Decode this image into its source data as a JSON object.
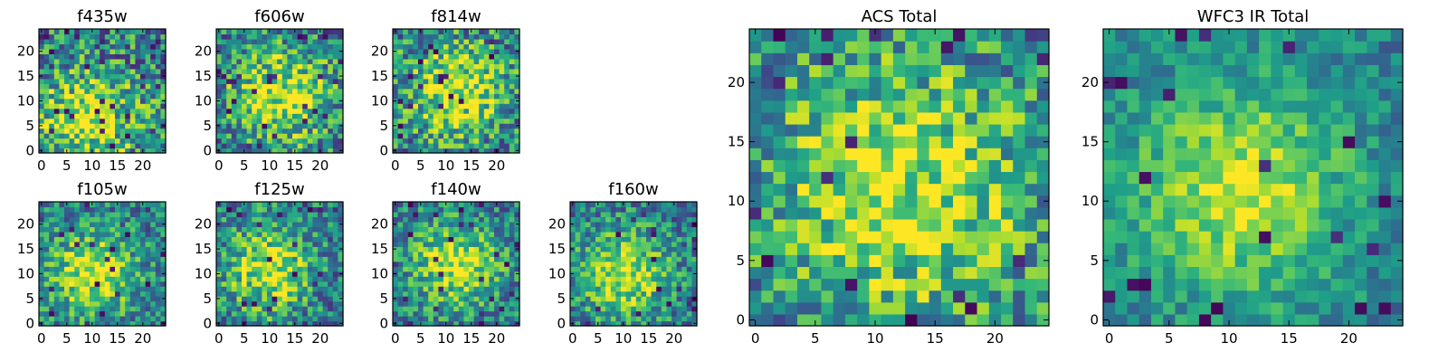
{
  "chart_data": [
    {
      "type": "heatmap",
      "title": "f435w",
      "grid_size": [
        25,
        25
      ],
      "xlim": [
        -0.5,
        24.5
      ],
      "ylim": [
        -0.5,
        24.5
      ],
      "xticks": [
        0,
        5,
        10,
        15,
        20
      ],
      "yticks": [
        0,
        5,
        10,
        15,
        20
      ],
      "xtick_labels": [
        "0",
        "5",
        "10",
        "15",
        "20"
      ],
      "ytick_labels": [
        "0",
        "5",
        "10",
        "15",
        "20"
      ],
      "colormap": "viridis",
      "peak": [
        9,
        6
      ],
      "spread": 7,
      "noise": 0.55,
      "seed": 11,
      "xlabel": "",
      "ylabel": "",
      "grid": false
    },
    {
      "type": "heatmap",
      "title": "f606w",
      "grid_size": [
        25,
        25
      ],
      "xlim": [
        -0.5,
        24.5
      ],
      "ylim": [
        -0.5,
        24.5
      ],
      "xticks": [
        0,
        5,
        10,
        15,
        20
      ],
      "yticks": [
        0,
        5,
        10,
        15,
        20
      ],
      "xtick_labels": [
        "0",
        "5",
        "10",
        "15",
        "20"
      ],
      "ytick_labels": [
        "0",
        "5",
        "10",
        "15",
        "20"
      ],
      "colormap": "viridis",
      "peak": [
        12,
        11
      ],
      "spread": 7,
      "noise": 0.5,
      "seed": 23,
      "xlabel": "",
      "ylabel": "",
      "grid": false
    },
    {
      "type": "heatmap",
      "title": "f814w",
      "grid_size": [
        25,
        25
      ],
      "xlim": [
        -0.5,
        24.5
      ],
      "ylim": [
        -0.5,
        24.5
      ],
      "xticks": [
        0,
        5,
        10,
        15,
        20
      ],
      "yticks": [
        0,
        5,
        10,
        15,
        20
      ],
      "xtick_labels": [
        "0",
        "5",
        "10",
        "15",
        "20"
      ],
      "ytick_labels": [
        "0",
        "5",
        "10",
        "15",
        "20"
      ],
      "colormap": "viridis",
      "peak": [
        12,
        12
      ],
      "spread": 7,
      "noise": 0.5,
      "seed": 37,
      "xlabel": "",
      "ylabel": "",
      "grid": false
    },
    {
      "type": "heatmap",
      "title": "f105w",
      "grid_size": [
        25,
        25
      ],
      "xlim": [
        -0.5,
        24.5
      ],
      "ylim": [
        -0.5,
        24.5
      ],
      "xticks": [
        0,
        5,
        10,
        15,
        20
      ],
      "yticks": [
        0,
        5,
        10,
        15,
        20
      ],
      "xtick_labels": [
        "0",
        "5",
        "10",
        "15",
        "20"
      ],
      "ytick_labels": [
        "0",
        "5",
        "10",
        "15",
        "20"
      ],
      "colormap": "viridis",
      "peak": [
        10,
        10
      ],
      "spread": 6,
      "noise": 0.4,
      "seed": 41,
      "xlabel": "",
      "ylabel": "",
      "grid": false
    },
    {
      "type": "heatmap",
      "title": "f125w",
      "grid_size": [
        25,
        25
      ],
      "xlim": [
        -0.5,
        24.5
      ],
      "ylim": [
        -0.5,
        24.5
      ],
      "xticks": [
        0,
        5,
        10,
        15,
        20
      ],
      "yticks": [
        0,
        5,
        10,
        15,
        20
      ],
      "xtick_labels": [
        "0",
        "5",
        "10",
        "15",
        "20"
      ],
      "ytick_labels": [
        "0",
        "5",
        "10",
        "15",
        "20"
      ],
      "colormap": "viridis",
      "peak": [
        10,
        11
      ],
      "spread": 6,
      "noise": 0.45,
      "seed": 53,
      "xlabel": "",
      "ylabel": "",
      "grid": false
    },
    {
      "type": "heatmap",
      "title": "f140w",
      "grid_size": [
        25,
        25
      ],
      "xlim": [
        -0.5,
        24.5
      ],
      "ylim": [
        -0.5,
        24.5
      ],
      "xticks": [
        0,
        5,
        10,
        15,
        20
      ],
      "yticks": [
        0,
        5,
        10,
        15,
        20
      ],
      "xtick_labels": [
        "0",
        "5",
        "10",
        "15",
        "20"
      ],
      "ytick_labels": [
        "0",
        "5",
        "10",
        "15",
        "20"
      ],
      "colormap": "viridis",
      "peak": [
        12,
        12
      ],
      "spread": 6,
      "noise": 0.4,
      "seed": 67,
      "xlabel": "",
      "ylabel": "",
      "grid": false
    },
    {
      "type": "heatmap",
      "title": "f160w",
      "grid_size": [
        25,
        25
      ],
      "xlim": [
        -0.5,
        24.5
      ],
      "ylim": [
        -0.5,
        24.5
      ],
      "xticks": [
        0,
        5,
        10,
        15,
        20
      ],
      "yticks": [
        0,
        5,
        10,
        15,
        20
      ],
      "xtick_labels": [
        "0",
        "5",
        "10",
        "15",
        "20"
      ],
      "ytick_labels": [
        "0",
        "5",
        "10",
        "15",
        "20"
      ],
      "colormap": "viridis",
      "peak": [
        10,
        10
      ],
      "spread": 6,
      "noise": 0.4,
      "seed": 79,
      "xlabel": "",
      "ylabel": "",
      "grid": false
    },
    {
      "type": "heatmap",
      "title": "ACS Total",
      "grid_size": [
        25,
        25
      ],
      "xlim": [
        -0.5,
        24.5
      ],
      "ylim": [
        -0.5,
        24.5
      ],
      "xticks": [
        0,
        5,
        10,
        15,
        20
      ],
      "yticks": [
        0,
        5,
        10,
        15,
        20
      ],
      "xtick_labels": [
        "0",
        "5",
        "10",
        "15",
        "20"
      ],
      "ytick_labels": [
        "0",
        "5",
        "10",
        "15",
        "20"
      ],
      "colormap": "viridis",
      "peak": [
        12,
        11
      ],
      "spread": 8,
      "noise": 0.45,
      "seed": 97,
      "xlabel": "",
      "ylabel": "",
      "grid": false
    },
    {
      "type": "heatmap",
      "title": "WFC3 IR Total",
      "grid_size": [
        25,
        25
      ],
      "xlim": [
        -0.5,
        24.5
      ],
      "ylim": [
        -0.5,
        24.5
      ],
      "xticks": [
        0,
        5,
        10,
        15,
        20
      ],
      "yticks": [
        0,
        5,
        10,
        15,
        20
      ],
      "xtick_labels": [
        "0",
        "5",
        "10",
        "15",
        "20"
      ],
      "ytick_labels": [
        "0",
        "5",
        "10",
        "15",
        "20"
      ],
      "colormap": "viridis",
      "peak": [
        11,
        11
      ],
      "spread": 6.5,
      "noise": 0.25,
      "seed": 113,
      "xlabel": "",
      "ylabel": "",
      "grid": false
    }
  ]
}
